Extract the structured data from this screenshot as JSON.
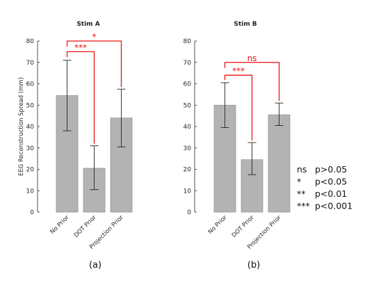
{
  "chart_data": [
    {
      "type": "bar",
      "title": "Stim A",
      "ylabel": "EEG Reconstruction Spread (mm)",
      "xlabel": "",
      "ylim": [
        0,
        80
      ],
      "yticks": [
        0,
        10,
        20,
        30,
        40,
        50,
        60,
        70,
        80
      ],
      "categories": [
        "No Prior",
        "DOT Prior",
        "Projection Prior"
      ],
      "values": [
        54.5,
        20.5,
        44
      ],
      "error_low": [
        38,
        10.5,
        30.5
      ],
      "error_high": [
        71,
        31,
        57.5
      ],
      "bar_color": "#b3b3b3",
      "significance": [
        {
          "from": 0,
          "to": 1,
          "label": "***",
          "y": 75
        },
        {
          "from": 0,
          "to": 2,
          "label": "*",
          "y": 80
        }
      ],
      "caption": "(a)"
    },
    {
      "type": "bar",
      "title": "Stim B",
      "ylabel": "",
      "xlabel": "",
      "ylim": [
        0,
        80
      ],
      "yticks": [
        0,
        10,
        20,
        30,
        40,
        50,
        60,
        70,
        80
      ],
      "categories": [
        "No Prior",
        "DOT Prior",
        "Projection Prior"
      ],
      "values": [
        50,
        24.5,
        45.5
      ],
      "error_low": [
        39.5,
        17.5,
        40.5
      ],
      "error_high": [
        60.5,
        32.5,
        51
      ],
      "bar_color": "#b3b3b3",
      "significance": [
        {
          "from": 0,
          "to": 1,
          "label": "***",
          "y": 64
        },
        {
          "from": 0,
          "to": 2,
          "label": "ns",
          "y": 70
        }
      ],
      "caption": "(b)"
    }
  ],
  "significance_legend": [
    {
      "symbol": "ns",
      "meaning": "p>0.05"
    },
    {
      "symbol": "*",
      "meaning": "p<0.05"
    },
    {
      "symbol": "**",
      "meaning": "p<0.01"
    },
    {
      "symbol": "***",
      "meaning": "p<0.001"
    }
  ],
  "colors": {
    "bar": "#b3b3b3",
    "bar_edge": "#8c8c8c",
    "significance": "#ee1111",
    "axis": "#262626"
  }
}
